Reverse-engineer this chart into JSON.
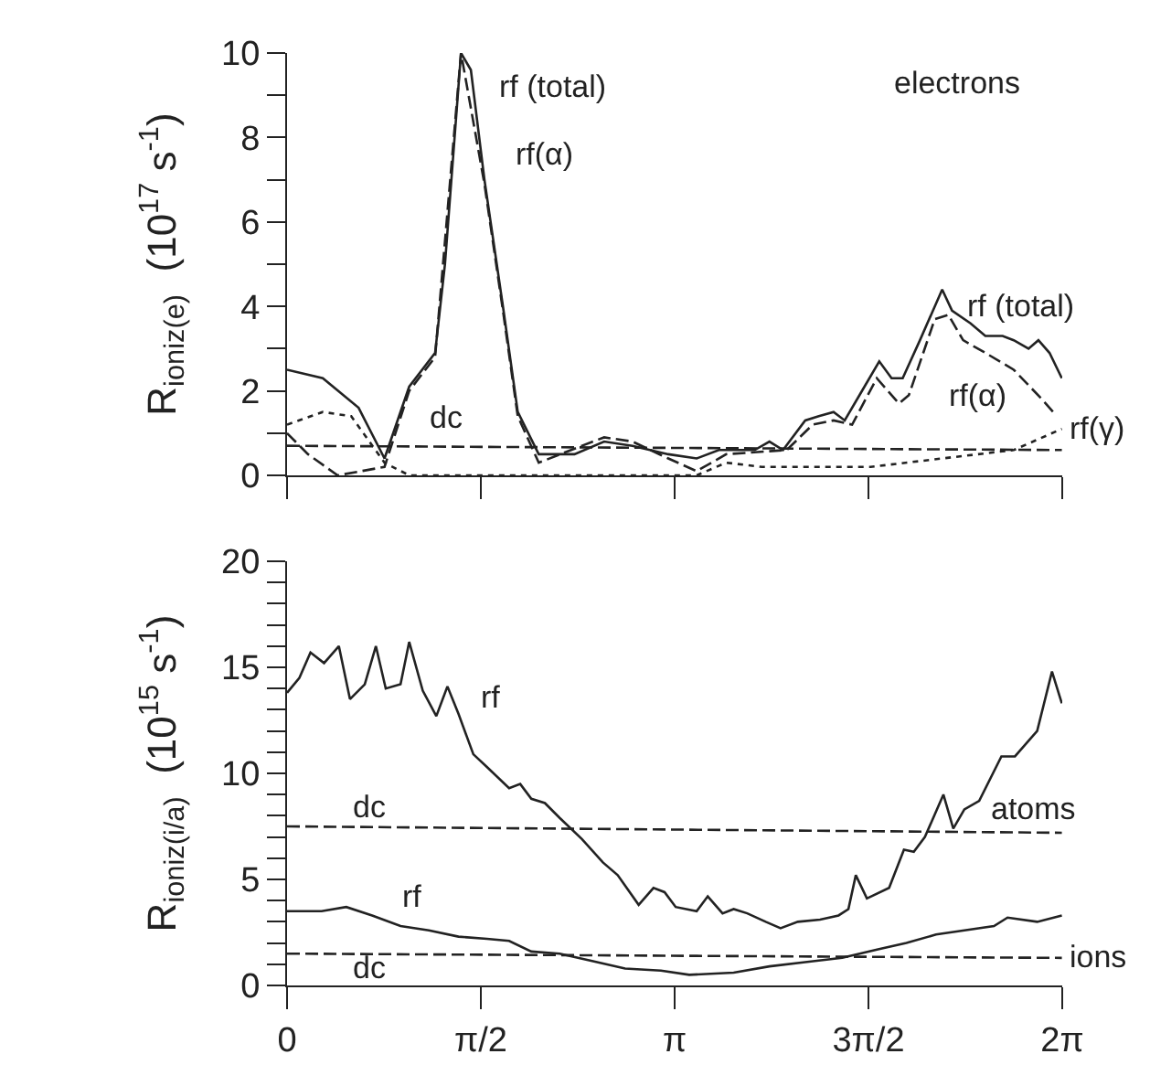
{
  "chart_data": [
    {
      "type": "line",
      "ylabel": "R$_{ioniz(e)}$  (10$^{17}$ s$^{-1}$)",
      "xlim": [
        0,
        6.2832
      ],
      "xticks": [
        {
          "value": 0,
          "label": null
        },
        {
          "value": 1.5708,
          "label": null
        },
        {
          "value": 3.1416,
          "label": null
        },
        {
          "value": 4.7124,
          "label": null
        },
        {
          "value": 6.2832,
          "label": null
        }
      ],
      "ylim": [
        0,
        10
      ],
      "yticks": [
        0,
        {
          "value": 1,
          "label": null
        },
        2,
        {
          "value": 3,
          "label": null
        },
        4,
        {
          "value": 5,
          "label": null
        },
        6,
        {
          "value": 7,
          "label": null
        },
        8,
        {
          "value": 9,
          "label": null
        },
        10
      ],
      "tick_labels": "y",
      "grid": false,
      "series": [
        {
          "color": "#222222",
          "line_style": "solid",
          "x": [
            0,
            0.29,
            0.58,
            0.79,
            0.99,
            1.2,
            1.28,
            1.41,
            1.49,
            1.6,
            1.75,
            1.87,
            2.04,
            2.33,
            2.57,
            2.8,
            3.09,
            3.32,
            3.5,
            3.79,
            3.91,
            4.02,
            4.2,
            4.31,
            4.43,
            4.52,
            4.64,
            4.8,
            4.9,
            4.99,
            5.13,
            5.31,
            5.39,
            5.54,
            5.66,
            5.8,
            5.89,
            6.01,
            6.09,
            6.18,
            6.28
          ],
          "values": [
            2.5,
            2.3,
            1.6,
            0.4,
            2.1,
            2.9,
            5,
            10,
            9.6,
            7,
            4,
            1.5,
            0.5,
            0.5,
            0.8,
            0.7,
            0.5,
            0.4,
            0.6,
            0.6,
            0.8,
            0.6,
            1.3,
            1.4,
            1.5,
            1.3,
            1.9,
            2.7,
            2.3,
            2.3,
            3.2,
            4.4,
            3.9,
            3.6,
            3.3,
            3.3,
            3.2,
            3.0,
            3.2,
            2.9,
            2.3
          ]
        },
        {
          "color": "#222222",
          "line_style": "dashed",
          "x": [
            0,
            0.17,
            0.41,
            0.79,
            0.99,
            1.2,
            1.41,
            1.6,
            1.75,
            1.87,
            2.04,
            2.39,
            2.57,
            2.8,
            3.09,
            3.32,
            3.56,
            4.05,
            4.26,
            4.43,
            4.58,
            4.78,
            4.96,
            5.04,
            5.25,
            5.36,
            5.48,
            5.66,
            5.89,
            6.12,
            6.21
          ],
          "values": [
            1.0,
            0.5,
            0,
            0.2,
            2.0,
            2.8,
            10.0,
            6.9,
            3.9,
            1.4,
            0.3,
            0.7,
            0.9,
            0.8,
            0.4,
            0.1,
            0.5,
            0.6,
            1.2,
            1.3,
            1.2,
            2.3,
            1.7,
            1.9,
            3.7,
            3.8,
            3.2,
            2.9,
            2.5,
            1.8,
            1.5
          ]
        },
        {
          "color": "#222222",
          "line_style": "dotted",
          "x": [
            0,
            0.29,
            0.52,
            0.79,
            0.99,
            2.04,
            3.32,
            3.56,
            3.85,
            4.73,
            5.31,
            5.89,
            6.28
          ],
          "values": [
            1.2,
            1.5,
            1.4,
            0.3,
            0,
            0,
            0,
            0.3,
            0.2,
            0.2,
            0.4,
            0.6,
            1.1
          ]
        },
        {
          "color": "#222222",
          "line_style": "dashed",
          "x": [
            0,
            6.28
          ],
          "values": [
            0.7,
            0.6
          ]
        }
      ],
      "annotations": [
        "electrons",
        "rf (total)",
        "rf(α)",
        "dc",
        {
          "text": "rf (total)",
          "x": 5.45,
          "y": 4.0
        },
        "rf(α)",
        {
          "text": "rf(γ)",
          "x": 6.28,
          "y": 1.1
        }
      ]
    },
    {
      "type": "line",
      "ylabel": "R$_{ioniz(i/a)}$  (10$^{15}$ s$^{-1}$)",
      "xlim": [
        0,
        6.2832
      ],
      "xticks": [
        0,
        {
          "value": 1.5708,
          "label": "π/2"
        },
        {
          "value": 3.1416,
          "label": "π"
        },
        {
          "value": 4.7124,
          "label": "3π/2"
        },
        {
          "value": 6.2832,
          "label": "2π"
        }
      ],
      "ylim": [
        0,
        20
      ],
      "yticks": [
        0,
        {
          "value": 1,
          "label": null
        },
        {
          "value": 2,
          "label": null
        },
        {
          "value": 3,
          "label": null
        },
        {
          "value": 4,
          "label": null
        },
        5,
        {
          "value": 6,
          "label": null
        },
        {
          "value": 7,
          "label": null
        },
        {
          "value": 8,
          "label": null
        },
        {
          "value": 9,
          "label": null
        },
        10,
        {
          "value": 11,
          "label": null
        },
        {
          "value": 12,
          "label": null
        },
        {
          "value": 13,
          "label": null
        },
        {
          "value": 14,
          "label": null
        },
        15,
        {
          "value": 16,
          "label": null
        },
        {
          "value": 17,
          "label": null
        },
        {
          "value": 18,
          "label": null
        },
        {
          "value": 19,
          "label": null
        },
        20
      ],
      "grid": false,
      "series": [
        {
          "color": "#222222",
          "line_style": "solid",
          "x": [
            0,
            0.1,
            0.19,
            0.3,
            0.42,
            0.51,
            0.63,
            0.72,
            0.8,
            0.92,
            0.99,
            1.1,
            1.21,
            1.3,
            1.39,
            1.51,
            1.62,
            1.8,
            1.89,
            1.98,
            2.09,
            2.21,
            2.39,
            2.56,
            2.68,
            2.85,
            2.97,
            3.06,
            3.15,
            3.32,
            3.41,
            3.53,
            3.62,
            3.73,
            3.88,
            4.0,
            4.14,
            4.32,
            4.47,
            4.55,
            4.61,
            4.7,
            4.88,
            5.0,
            5.08,
            5.17,
            5.32,
            5.4,
            5.49,
            5.61,
            5.79,
            5.9,
            6.08,
            6.2,
            6.28
          ],
          "values": [
            13.8,
            14.5,
            15.7,
            15.2,
            16.0,
            13.5,
            14.2,
            16.0,
            14.0,
            14.2,
            16.2,
            13.9,
            12.7,
            14.1,
            12.8,
            10.9,
            10.3,
            9.3,
            9.5,
            8.8,
            8.6,
            7.9,
            6.9,
            5.8,
            5.2,
            3.8,
            4.6,
            4.4,
            3.7,
            3.5,
            4.2,
            3.4,
            3.6,
            3.4,
            3.0,
            2.7,
            3.0,
            3.1,
            3.3,
            3.6,
            5.2,
            4.1,
            4.6,
            6.4,
            6.3,
            7.0,
            9.0,
            7.4,
            8.3,
            8.7,
            10.8,
            10.8,
            12.0,
            14.8,
            13.3
          ]
        },
        {
          "color": "#222222",
          "line_style": "dashed",
          "x": [
            0,
            6.28
          ],
          "values": [
            7.5,
            7.2
          ]
        },
        {
          "color": "#222222",
          "line_style": "solid",
          "x": [
            0,
            0.28,
            0.48,
            0.69,
            0.92,
            1.15,
            1.39,
            1.62,
            1.8,
            1.98,
            2.21,
            2.44,
            2.74,
            3.03,
            3.26,
            3.62,
            3.91,
            4.2,
            4.5,
            4.79,
            5.02,
            5.26,
            5.49,
            5.73,
            5.84,
            6.08,
            6.28
          ],
          "values": [
            3.5,
            3.5,
            3.7,
            3.3,
            2.8,
            2.6,
            2.3,
            2.2,
            2.1,
            1.6,
            1.5,
            1.2,
            0.8,
            0.7,
            0.5,
            0.6,
            0.9,
            1.1,
            1.3,
            1.7,
            2.0,
            2.4,
            2.6,
            2.8,
            3.2,
            3.0,
            3.3
          ]
        },
        {
          "color": "#222222",
          "line_style": "dashed",
          "x": [
            0,
            6.28
          ],
          "values": [
            1.5,
            1.3
          ]
        }
      ],
      "annotations": [
        "rf",
        "dc",
        {
          "text": "atoms",
          "x": 5.65,
          "y": 8.3
        },
        "rf",
        "dc",
        {
          "text": "ions",
          "x": 6.28,
          "y": 1.3
        }
      ]
    }
  ]
}
